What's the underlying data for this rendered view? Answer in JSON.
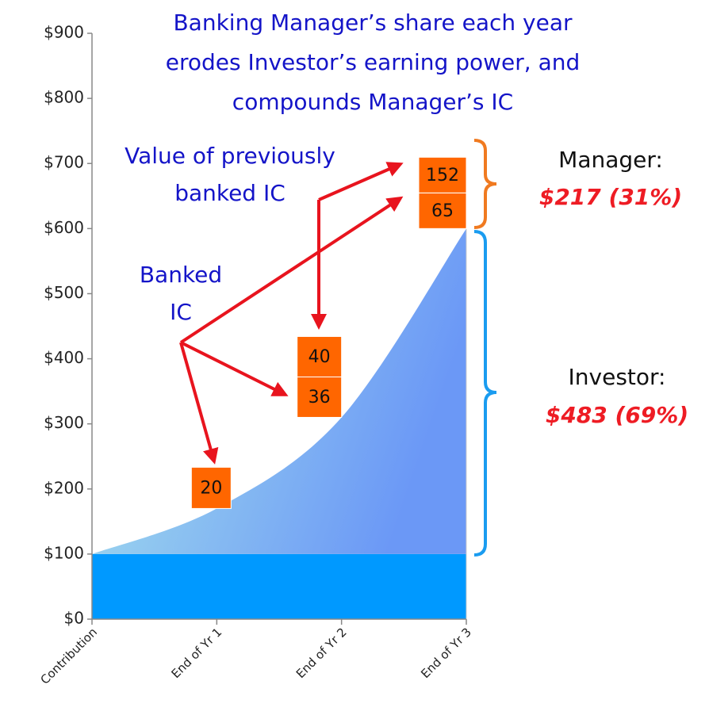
{
  "chart_data": {
    "type": "area",
    "title": [
      "Banking Manager’s share each year",
      "erodes Investor’s earning power, and",
      "compounds Manager’s IC"
    ],
    "categories": [
      "Contribution",
      "End of Yr 1",
      "End of Yr 2",
      "End of Yr 3"
    ],
    "series": [
      {
        "color": "#0099ff",
        "values": [
          100,
          100,
          100,
          100
        ]
      },
      {
        "color": "#7aa5f6",
        "values": [
          100,
          170,
          310,
          600
        ]
      }
    ],
    "boxes": [
      [],
      [
        20
      ],
      [
        36,
        40
      ],
      [
        65,
        152
      ]
    ],
    "box_color": "#ff6600",
    "ylim": [
      0,
      900
    ],
    "yticks": [
      {
        "value": 0,
        "label": "$0"
      },
      {
        "value": 100,
        "label": "$100"
      },
      {
        "value": 200,
        "label": "$200"
      },
      {
        "value": 300,
        "label": "$300"
      },
      {
        "value": 400,
        "label": "$400"
      },
      {
        "value": 500,
        "label": "$500"
      },
      {
        "value": 600,
        "label": "$600"
      },
      {
        "value": 700,
        "label": "$700"
      },
      {
        "value": 800,
        "label": "$800"
      },
      {
        "value": 900,
        "label": "$900"
      }
    ],
    "annotations": {
      "previous": [
        "Value of previously",
        "banked IC"
      ],
      "banked": [
        "Banked",
        "IC"
      ],
      "manager": "Manager:",
      "manager_value": "$217 (31%)",
      "investor": "Investor:",
      "investor_value": "$483 (69%)"
    }
  }
}
